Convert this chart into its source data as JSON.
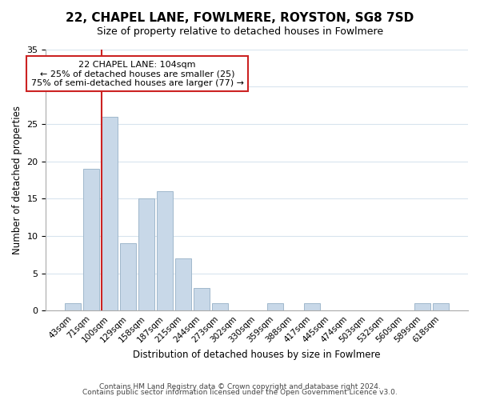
{
  "title": "22, CHAPEL LANE, FOWLMERE, ROYSTON, SG8 7SD",
  "subtitle": "Size of property relative to detached houses in Fowlmere",
  "xlabel": "Distribution of detached houses by size in Fowlmere",
  "ylabel": "Number of detached properties",
  "bar_labels": [
    "43sqm",
    "71sqm",
    "100sqm",
    "129sqm",
    "158sqm",
    "187sqm",
    "215sqm",
    "244sqm",
    "273sqm",
    "302sqm",
    "330sqm",
    "359sqm",
    "388sqm",
    "417sqm",
    "445sqm",
    "474sqm",
    "503sqm",
    "532sqm",
    "560sqm",
    "589sqm",
    "618sqm"
  ],
  "bar_values": [
    1,
    19,
    26,
    9,
    15,
    16,
    7,
    3,
    1,
    0,
    0,
    1,
    0,
    1,
    0,
    0,
    0,
    0,
    0,
    1,
    1
  ],
  "bar_color": "#c8d8e8",
  "bar_edge_color": "#a0b8cc",
  "red_line_x": 1.575,
  "annotation_title": "22 CHAPEL LANE: 104sqm",
  "annotation_line1": "← 25% of detached houses are smaller (25)",
  "annotation_line2": "75% of semi-detached houses are larger (77) →",
  "ylim": [
    0,
    35
  ],
  "yticks": [
    0,
    5,
    10,
    15,
    20,
    25,
    30,
    35
  ],
  "footer_line1": "Contains HM Land Registry data © Crown copyright and database right 2024.",
  "footer_line2": "Contains public sector information licensed under the Open Government Licence v3.0.",
  "background_color": "#ffffff",
  "grid_color": "#d8e4ee",
  "annotation_box_color": "#ffffff",
  "annotation_box_edge": "#cc2222",
  "red_line_color": "#cc2222"
}
